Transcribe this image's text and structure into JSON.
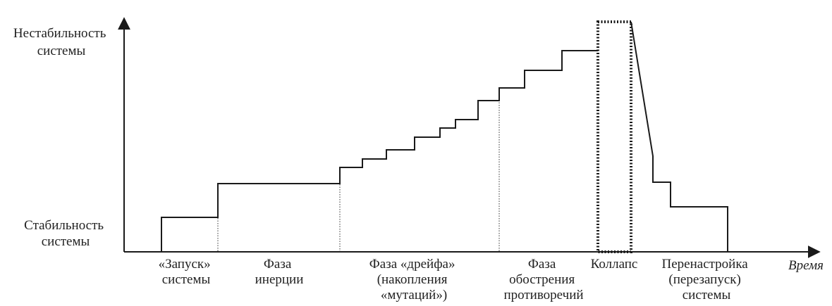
{
  "axes": {
    "y_top_label": [
      "Нестабильность",
      "системы"
    ],
    "y_bottom_label": [
      "Стабильность",
      "системы"
    ],
    "x_label": "Время"
  },
  "phases": [
    {
      "id": "launch",
      "lines": [
        "«Запуск»",
        "системы"
      ]
    },
    {
      "id": "inertia",
      "lines": [
        "Фаза",
        "инерции"
      ]
    },
    {
      "id": "drift",
      "lines": [
        "Фаза «дрейфа»",
        "(накопления",
        "«мутаций»)"
      ]
    },
    {
      "id": "aggravation",
      "lines": [
        "Фаза",
        "обострения",
        "противоречий"
      ]
    },
    {
      "id": "collapse",
      "lines": [
        "Коллапс"
      ]
    },
    {
      "id": "restart",
      "lines": [
        "Перенастройка",
        "(перезапуск)",
        "системы"
      ]
    }
  ],
  "colors": {
    "line": "#1a1a1a",
    "text": "#222222"
  }
}
